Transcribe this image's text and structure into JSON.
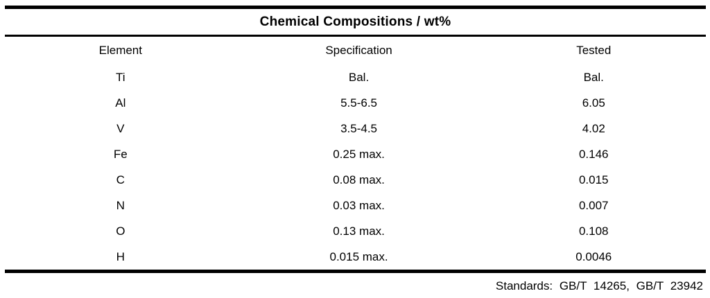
{
  "table": {
    "title": "Chemical Compositions / wt%",
    "columns": {
      "element": "Element",
      "specification": "Specification",
      "tested": "Tested"
    },
    "rows": [
      {
        "element": "Ti",
        "specification": "Bal.",
        "tested": "Bal."
      },
      {
        "element": "Al",
        "specification": "5.5-6.5",
        "tested": "6.05"
      },
      {
        "element": "V",
        "specification": "3.5-4.5",
        "tested": "4.02"
      },
      {
        "element": "Fe",
        "specification": "0.25 max.",
        "tested": "0.146"
      },
      {
        "element": "C",
        "specification": "0.08 max.",
        "tested": "0.015"
      },
      {
        "element": "N",
        "specification": "0.03 max.",
        "tested": "0.007"
      },
      {
        "element": "O",
        "specification": "0.13 max.",
        "tested": "0.108"
      },
      {
        "element": "H",
        "specification": "0.015 max.",
        "tested": "0.0046"
      }
    ],
    "footer": "Standards: GB/T 14265, GB/T 23942"
  }
}
